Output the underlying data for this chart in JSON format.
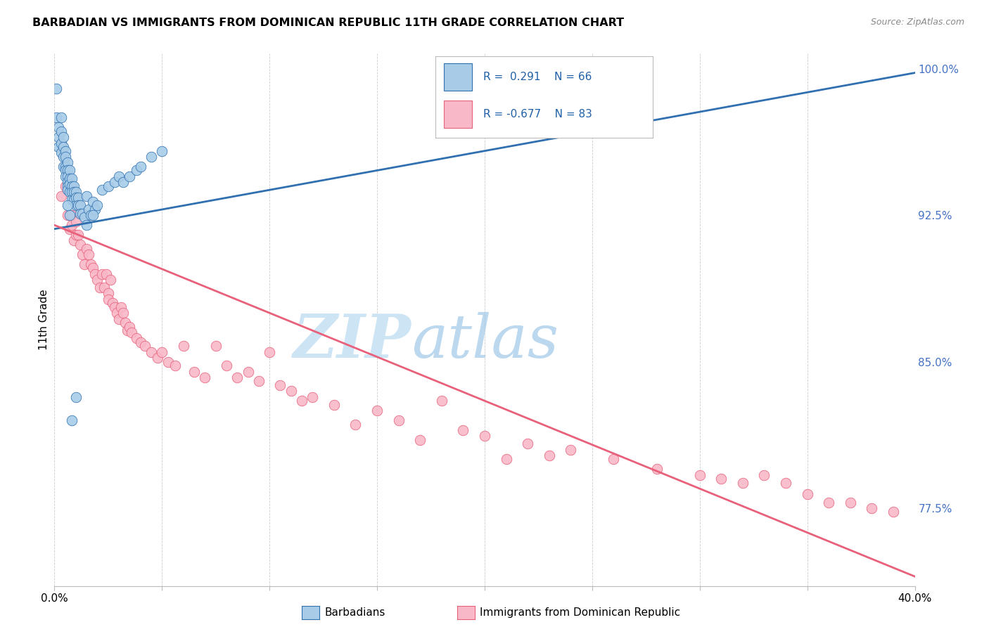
{
  "title": "BARBADIAN VS IMMIGRANTS FROM DOMINICAN REPUBLIC 11TH GRADE CORRELATION CHART",
  "source": "Source: ZipAtlas.com",
  "ylabel": "11th Grade",
  "xlim": [
    0.0,
    0.4
  ],
  "ylim": [
    0.735,
    1.008
  ],
  "right_yticks": [
    0.775,
    0.85,
    0.925,
    1.0
  ],
  "right_yticklabels": [
    "77.5%",
    "85.0%",
    "92.5%",
    "100.0%"
  ],
  "color_blue": "#a8cce8",
  "color_pink": "#f9b8c8",
  "line_color_blue": "#3070b0",
  "line_color_pink": "#e8607a",
  "watermark_zip": "ZIP",
  "watermark_atlas": "atlas",
  "watermark_color_zip": "#d0e8f5",
  "watermark_color_atlas": "#a8d4f0",
  "blue_trend_x": [
    0.0,
    0.4
  ],
  "blue_trend_y": [
    0.918,
    0.998
  ],
  "pink_trend_x": [
    0.0,
    0.4
  ],
  "pink_trend_y": [
    0.92,
    0.74
  ],
  "blue_dots_x": [
    0.001,
    0.001,
    0.002,
    0.002,
    0.002,
    0.003,
    0.003,
    0.003,
    0.003,
    0.004,
    0.004,
    0.004,
    0.004,
    0.005,
    0.005,
    0.005,
    0.005,
    0.005,
    0.006,
    0.006,
    0.006,
    0.006,
    0.006,
    0.006,
    0.007,
    0.007,
    0.007,
    0.007,
    0.008,
    0.008,
    0.008,
    0.008,
    0.009,
    0.009,
    0.009,
    0.01,
    0.01,
    0.01,
    0.011,
    0.011,
    0.012,
    0.012,
    0.013,
    0.014,
    0.015,
    0.016,
    0.017,
    0.018,
    0.019,
    0.02,
    0.022,
    0.025,
    0.028,
    0.03,
    0.032,
    0.035,
    0.038,
    0.04,
    0.045,
    0.05,
    0.015,
    0.018,
    0.01,
    0.008,
    0.007,
    0.006
  ],
  "blue_dots_y": [
    0.99,
    0.975,
    0.97,
    0.965,
    0.96,
    0.975,
    0.968,
    0.962,
    0.957,
    0.965,
    0.96,
    0.955,
    0.95,
    0.958,
    0.955,
    0.95,
    0.948,
    0.945,
    0.952,
    0.948,
    0.945,
    0.942,
    0.94,
    0.938,
    0.948,
    0.944,
    0.941,
    0.937,
    0.944,
    0.94,
    0.937,
    0.933,
    0.94,
    0.937,
    0.933,
    0.937,
    0.934,
    0.93,
    0.934,
    0.93,
    0.93,
    0.926,
    0.926,
    0.924,
    0.935,
    0.928,
    0.925,
    0.932,
    0.928,
    0.93,
    0.938,
    0.94,
    0.942,
    0.945,
    0.942,
    0.945,
    0.948,
    0.95,
    0.955,
    0.958,
    0.92,
    0.925,
    0.832,
    0.82,
    0.925,
    0.93
  ],
  "pink_dots_x": [
    0.003,
    0.005,
    0.006,
    0.007,
    0.008,
    0.008,
    0.009,
    0.01,
    0.01,
    0.011,
    0.012,
    0.013,
    0.014,
    0.015,
    0.016,
    0.017,
    0.018,
    0.019,
    0.02,
    0.021,
    0.022,
    0.023,
    0.024,
    0.025,
    0.025,
    0.026,
    0.027,
    0.028,
    0.029,
    0.03,
    0.031,
    0.032,
    0.033,
    0.034,
    0.035,
    0.036,
    0.038,
    0.04,
    0.042,
    0.045,
    0.048,
    0.05,
    0.053,
    0.056,
    0.06,
    0.065,
    0.07,
    0.075,
    0.08,
    0.085,
    0.09,
    0.095,
    0.1,
    0.105,
    0.11,
    0.115,
    0.12,
    0.13,
    0.14,
    0.15,
    0.16,
    0.17,
    0.18,
    0.19,
    0.2,
    0.21,
    0.22,
    0.23,
    0.24,
    0.26,
    0.28,
    0.3,
    0.31,
    0.32,
    0.33,
    0.34,
    0.35,
    0.36,
    0.37,
    0.38,
    0.39
  ],
  "pink_dots_y": [
    0.935,
    0.94,
    0.925,
    0.918,
    0.925,
    0.92,
    0.912,
    0.922,
    0.915,
    0.915,
    0.91,
    0.905,
    0.9,
    0.908,
    0.905,
    0.9,
    0.898,
    0.895,
    0.892,
    0.888,
    0.895,
    0.888,
    0.895,
    0.885,
    0.882,
    0.892,
    0.88,
    0.878,
    0.875,
    0.872,
    0.878,
    0.875,
    0.87,
    0.866,
    0.868,
    0.865,
    0.862,
    0.86,
    0.858,
    0.855,
    0.852,
    0.855,
    0.85,
    0.848,
    0.858,
    0.845,
    0.842,
    0.858,
    0.848,
    0.842,
    0.845,
    0.84,
    0.855,
    0.838,
    0.835,
    0.83,
    0.832,
    0.828,
    0.818,
    0.825,
    0.82,
    0.81,
    0.83,
    0.815,
    0.812,
    0.8,
    0.808,
    0.802,
    0.805,
    0.8,
    0.795,
    0.792,
    0.79,
    0.788,
    0.792,
    0.788,
    0.782,
    0.778,
    0.778,
    0.775,
    0.773
  ]
}
